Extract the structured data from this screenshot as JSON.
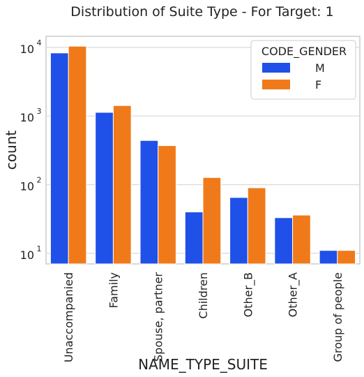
{
  "chart_data": {
    "type": "bar",
    "title": "Distribution of Suite Type - For Target: 1",
    "xlabel": "NAME_TYPE_SUITE",
    "ylabel": "count",
    "yscale": "log",
    "ylim": [
      7,
      14500
    ],
    "yticks": [
      {
        "value": 10,
        "base": "10",
        "exp": "1"
      },
      {
        "value": 100,
        "base": "10",
        "exp": "2"
      },
      {
        "value": 1000,
        "base": "10",
        "exp": "3"
      },
      {
        "value": 10000,
        "base": "10",
        "exp": "4"
      }
    ],
    "grid": true,
    "legend_position": "top-right",
    "legend_title": "CODE_GENDER",
    "categories": [
      "Unaccompanied",
      "Family",
      "Spouse, partner",
      "Children",
      "Other_B",
      "Other_A",
      "Group of people"
    ],
    "series": [
      {
        "name": "M",
        "color": "#1f50e8",
        "values": [
          8300,
          1130,
          440,
          40,
          65,
          33,
          11
        ]
      },
      {
        "name": "F",
        "color": "#f07a19",
        "values": [
          10400,
          1420,
          370,
          127,
          90,
          36,
          11
        ]
      }
    ]
  }
}
